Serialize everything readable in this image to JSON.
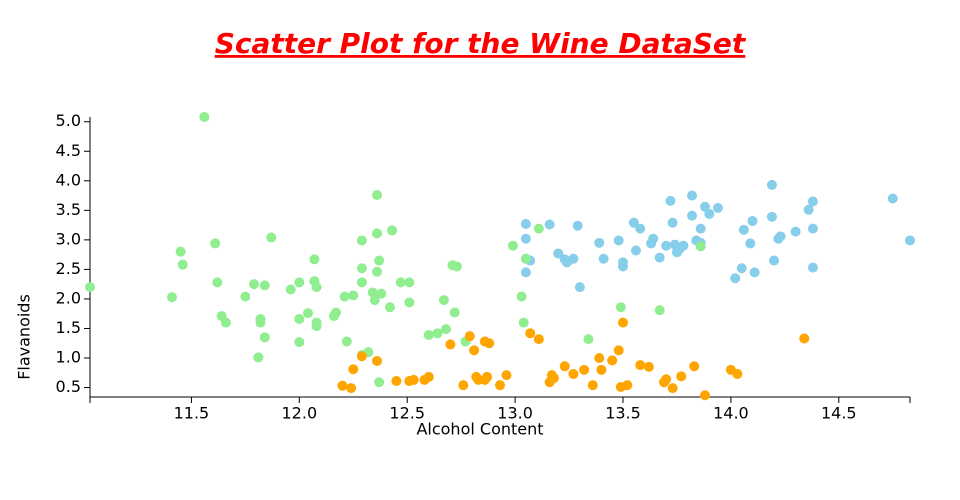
{
  "chart_data": {
    "type": "scatter",
    "title": "Scatter Plot for the Wine DataSet",
    "x_label": "Alcohol Content",
    "y_label": "Flavanoids",
    "xlim": [
      11.03,
      14.83
    ],
    "ylim": [
      0.34,
      5.08
    ],
    "xticks": [
      11.5,
      {
        "value": 12,
        "label": "12.0"
      },
      12.5,
      {
        "value": 13,
        "label": "13.0"
      },
      13.5,
      {
        "value": 14,
        "label": "14.0"
      },
      14.5
    ],
    "yticks": [
      0.5,
      {
        "value": 1,
        "label": "1.0"
      },
      1.5,
      {
        "value": 2,
        "label": "2.0"
      },
      2.5,
      {
        "value": 3,
        "label": "3.0"
      },
      3.5,
      {
        "value": 4,
        "label": "4.0"
      },
      4.5,
      {
        "value": 5,
        "label": "5.0"
      }
    ],
    "series": [
      {
        "color": "#87ceeb",
        "x": [
          13.05,
          13.05,
          13.05,
          13.05,
          13.07,
          13.16,
          13.2,
          13.23,
          13.24,
          13.27,
          13.29,
          13.3,
          13.39,
          13.41,
          13.48,
          13.5,
          13.5,
          13.55,
          13.56,
          13.58,
          13.63,
          13.64,
          13.67,
          13.7,
          13.72,
          13.73,
          13.74,
          13.75,
          13.76,
          13.78,
          13.82,
          13.82,
          13.84,
          13.86,
          13.86,
          13.88,
          13.9,
          13.94,
          14.02,
          14.05,
          14.06,
          14.09,
          14.1,
          14.11,
          14.19,
          14.19,
          14.2,
          14.22,
          14.23,
          14.3,
          14.36,
          14.38,
          14.38,
          14.38,
          14.75,
          14.83
        ],
        "values": [
          3.27,
          3.02,
          2.68,
          2.45,
          2.65,
          3.26,
          2.77,
          2.67,
          2.62,
          2.68,
          3.24,
          2.2,
          2.95,
          2.68,
          2.99,
          2.62,
          2.55,
          3.29,
          2.82,
          3.19,
          2.94,
          3.02,
          2.7,
          2.9,
          3.66,
          3.29,
          2.92,
          2.79,
          2.84,
          2.9,
          3.75,
          3.41,
          2.99,
          3.19,
          2.95,
          3.56,
          3.44,
          3.54,
          2.35,
          2.52,
          3.17,
          2.94,
          3.32,
          2.45,
          3.93,
          3.39,
          2.65,
          3.02,
          3.06,
          3.14,
          3.51,
          3.65,
          3.19,
          2.53,
          3.7,
          2.99
        ]
      },
      {
        "color": "#90ee90",
        "x": [
          11.03,
          11.41,
          11.45,
          11.46,
          11.56,
          11.61,
          11.62,
          11.64,
          11.66,
          11.75,
          11.79,
          11.81,
          11.82,
          11.82,
          11.84,
          11.84,
          11.87,
          11.96,
          12.0,
          12.0,
          12.0,
          12.04,
          12.07,
          12.07,
          12.08,
          12.08,
          12.08,
          12.16,
          12.17,
          12.21,
          12.22,
          12.25,
          12.29,
          12.29,
          12.29,
          12.29,
          12.32,
          12.34,
          12.35,
          12.36,
          12.36,
          12.37,
          12.36,
          12.37,
          12.38,
          12.42,
          12.43,
          12.47,
          12.51,
          12.51,
          12.6,
          12.64,
          12.67,
          12.68,
          12.71,
          12.72,
          12.73,
          12.77,
          12.99,
          13.03,
          13.04,
          13.05,
          13.11,
          13.34,
          13.49,
          13.67,
          13.86
        ],
        "values": [
          2.2,
          2.03,
          2.8,
          2.58,
          5.08,
          2.94,
          2.28,
          1.71,
          1.6,
          2.04,
          2.25,
          1.01,
          1.66,
          1.6,
          2.23,
          1.35,
          3.04,
          2.16,
          2.28,
          1.66,
          1.27,
          1.76,
          2.67,
          2.3,
          2.2,
          1.6,
          1.54,
          1.71,
          1.77,
          2.04,
          1.28,
          2.06,
          2.99,
          2.52,
          2.28,
          1.05,
          1.1,
          2.11,
          1.98,
          3.76,
          3.11,
          2.65,
          2.46,
          0.59,
          2.09,
          1.86,
          3.16,
          2.28,
          1.94,
          2.28,
          1.39,
          1.42,
          1.98,
          1.49,
          2.57,
          1.77,
          2.55,
          1.28,
          2.9,
          2.04,
          1.6,
          2.68,
          3.19,
          1.32,
          1.86,
          1.81,
          2.89
        ]
      },
      {
        "color": "#ffa500",
        "x": [
          12.2,
          12.24,
          12.25,
          12.29,
          12.36,
          12.45,
          12.51,
          12.53,
          12.58,
          12.6,
          12.7,
          12.76,
          12.79,
          12.81,
          12.82,
          12.83,
          12.86,
          12.87,
          12.86,
          12.88,
          12.93,
          12.96,
          13.07,
          13.11,
          13.16,
          13.17,
          13.18,
          13.23,
          13.27,
          13.32,
          13.36,
          13.39,
          13.4,
          13.45,
          13.48,
          13.49,
          13.5,
          13.52,
          13.58,
          13.62,
          13.69,
          13.7,
          13.73,
          13.77,
          13.83,
          13.88,
          14.0,
          14.03,
          14.34
        ],
        "values": [
          0.53,
          0.49,
          0.81,
          1.03,
          0.95,
          0.61,
          0.61,
          0.63,
          0.63,
          0.68,
          1.23,
          0.54,
          1.37,
          1.13,
          0.68,
          0.63,
          0.63,
          0.68,
          1.28,
          1.25,
          0.54,
          0.71,
          1.42,
          1.32,
          0.59,
          0.71,
          0.66,
          0.86,
          0.73,
          0.8,
          0.54,
          1.0,
          0.8,
          0.96,
          1.13,
          0.51,
          1.6,
          0.54,
          0.88,
          0.85,
          0.59,
          0.64,
          0.49,
          0.69,
          0.86,
          0.37,
          0.8,
          0.73,
          1.33
        ]
      }
    ]
  }
}
